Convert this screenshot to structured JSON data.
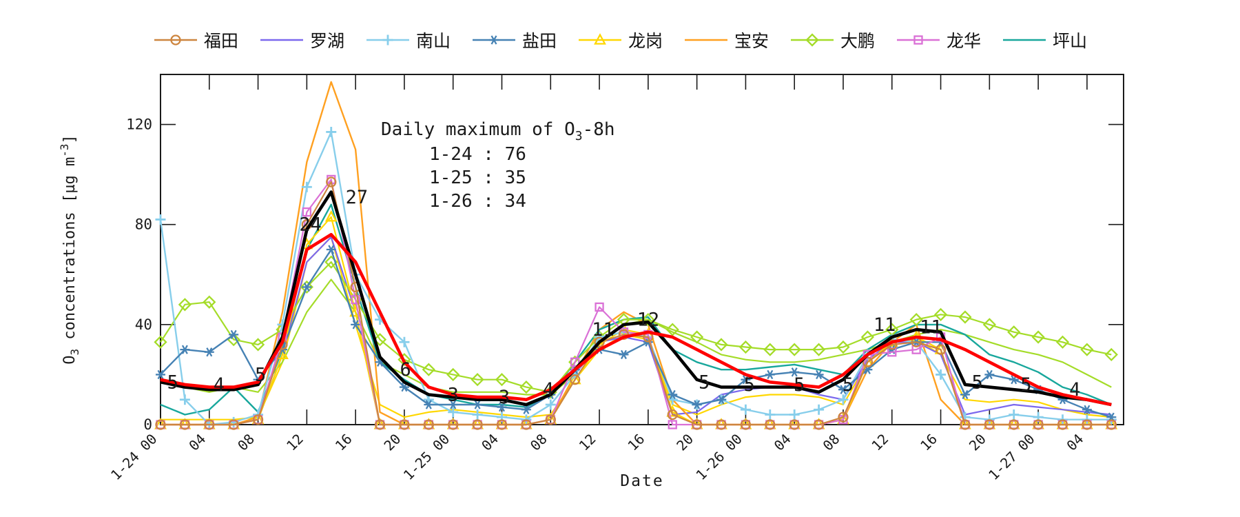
{
  "figure": {
    "background": "#ffffff",
    "spine_color": "#1a1a1a"
  },
  "xlabel": "Date",
  "ylabel": {
    "o": "O",
    "sub": "3",
    "mid": " concentrations [µg m",
    "sup": "-3",
    "close": "]"
  },
  "annotation_box": {
    "title": {
      "pre": "Daily maximum of O",
      "sub": "3",
      "post": "-8h"
    },
    "lines": {
      "0": "1-24 : 76",
      "1": "1-25 : 35",
      "2": "1-26 : 34"
    }
  },
  "chart_data": {
    "type": "line",
    "title": "",
    "xlabel": "Date",
    "ylabel": "O3 concentrations [ug m-3]",
    "xlim_hours": [
      0,
      79
    ],
    "ylim": [
      0,
      140
    ],
    "grid": false,
    "legend_position": "top-center-outside",
    "x_start_label": "1-24 00",
    "x_step_hours": 2,
    "x_tick_hours": [
      0,
      4,
      8,
      12,
      16,
      20,
      24,
      28,
      32,
      36,
      40,
      44,
      48,
      52,
      56,
      60,
      64,
      68,
      72,
      76
    ],
    "x_tick_labels": [
      "1-24 00",
      "04",
      "08",
      "12",
      "16",
      "20",
      "1-25 00",
      "04",
      "08",
      "12",
      "16",
      "20",
      "1-26 00",
      "04",
      "08",
      "12",
      "16",
      "20",
      "1-27 00",
      "04"
    ],
    "y_ticks": [
      0,
      40,
      80,
      120
    ],
    "series": [
      {
        "id": "gold-thin-unlabeled",
        "label": "",
        "legend": false,
        "color": "#FFD700",
        "marker": "none",
        "width": 2.2,
        "values": [
          2,
          2,
          2,
          2,
          3,
          25,
          65,
          75,
          40,
          8,
          3,
          5,
          6,
          5,
          4,
          3,
          4,
          18,
          30,
          36,
          34,
          8,
          4,
          8,
          11,
          12,
          12,
          11,
          8,
          25,
          33,
          34,
          28,
          10,
          9,
          10,
          9,
          6,
          4,
          3
        ]
      },
      {
        "id": "green-thin-unlabeled",
        "label": "",
        "legend": false,
        "color": "#A4DC28",
        "marker": "none",
        "width": 2.2,
        "values": [
          17,
          15,
          13,
          15,
          13,
          25,
          45,
          58,
          45,
          25,
          20,
          15,
          13,
          13,
          13,
          12,
          12,
          20,
          33,
          40,
          42,
          37,
          33,
          28,
          26,
          25,
          25,
          26,
          28,
          30,
          33,
          36,
          38,
          36,
          33,
          30,
          28,
          25,
          20,
          15
        ]
      },
      {
        "id": "luohu",
        "label": "罗湖",
        "legend": true,
        "color": "#7B68EE",
        "marker": "none",
        "width": 2.2,
        "values": [
          0,
          0,
          0,
          0,
          2,
          28,
          65,
          75,
          45,
          0,
          0,
          0,
          0,
          0,
          0,
          0,
          2,
          20,
          33,
          35,
          33,
          4,
          5,
          12,
          14,
          15,
          15,
          12,
          10,
          26,
          33,
          33,
          28,
          4,
          6,
          8,
          7,
          6,
          5,
          4
        ]
      },
      {
        "id": "baoan",
        "label": "宝安",
        "legend": true,
        "color": "#FFA020",
        "marker": "none",
        "width": 2.4,
        "values": [
          0,
          0,
          0,
          0,
          3,
          45,
          105,
          137,
          110,
          5,
          0,
          0,
          0,
          0,
          0,
          0,
          2,
          20,
          38,
          45,
          40,
          10,
          0,
          0,
          0,
          0,
          0,
          0,
          2,
          22,
          33,
          40,
          10,
          0,
          0,
          0,
          0,
          0,
          0,
          0
        ]
      },
      {
        "id": "pingshan",
        "label": "坪山",
        "legend": true,
        "color": "#18A79C",
        "marker": "none",
        "width": 2.4,
        "values": [
          8,
          4,
          6,
          15,
          5,
          30,
          70,
          88,
          55,
          25,
          18,
          12,
          10,
          8,
          8,
          7,
          12,
          25,
          38,
          42,
          43,
          30,
          25,
          22,
          22,
          23,
          24,
          22,
          20,
          30,
          36,
          40,
          40,
          36,
          28,
          25,
          21,
          15,
          12,
          8
        ]
      },
      {
        "id": "dapeng",
        "label": "大鹏",
        "legend": true,
        "color": "#A4DC28",
        "marker": "diamond",
        "width": 2.2,
        "values": [
          33,
          48,
          49,
          34,
          32,
          38,
          55,
          65,
          50,
          34,
          26,
          22,
          20,
          18,
          18,
          15,
          13,
          25,
          35,
          42,
          42,
          38,
          35,
          32,
          31,
          30,
          30,
          30,
          31,
          35,
          38,
          42,
          44,
          43,
          40,
          37,
          35,
          33,
          30,
          28
        ]
      },
      {
        "id": "longgang",
        "label": "龙岗",
        "legend": true,
        "color": "#FFD700",
        "marker": "triangle",
        "width": 2.2,
        "values": [
          0,
          0,
          0,
          0,
          2,
          28,
          72,
          83,
          45,
          0,
          0,
          0,
          0,
          0,
          0,
          0,
          2,
          18,
          32,
          38,
          36,
          5,
          0,
          0,
          0,
          0,
          0,
          0,
          2,
          25,
          33,
          35,
          30,
          0,
          0,
          0,
          0,
          0,
          0,
          0
        ]
      },
      {
        "id": "nanshan",
        "label": "南山",
        "legend": true,
        "color": "#87CEEB",
        "marker": "plus",
        "width": 2.4,
        "values": [
          82,
          10,
          0,
          1,
          4,
          40,
          95,
          117,
          60,
          42,
          33,
          10,
          5,
          4,
          3,
          2,
          8,
          20,
          35,
          37,
          35,
          10,
          8,
          10,
          6,
          4,
          4,
          6,
          10,
          28,
          34,
          33,
          20,
          3,
          2,
          4,
          3,
          2,
          2,
          2
        ]
      },
      {
        "id": "yantian",
        "label": "盐田",
        "legend": true,
        "color": "#4682B4",
        "marker": "asterisk",
        "width": 2.4,
        "values": [
          20,
          30,
          29,
          36,
          18,
          30,
          55,
          70,
          40,
          25,
          15,
          8,
          8,
          8,
          7,
          6,
          12,
          22,
          30,
          28,
          33,
          12,
          8,
          10,
          18,
          20,
          21,
          20,
          14,
          22,
          30,
          33,
          33,
          12,
          20,
          18,
          14,
          10,
          6,
          3
        ]
      },
      {
        "id": "longhua",
        "label": "龙华",
        "legend": true,
        "color": "#DA70D6",
        "marker": "square",
        "width": 2.2,
        "values": [
          0,
          0,
          0,
          0,
          2,
          35,
          85,
          98,
          50,
          0,
          0,
          0,
          0,
          0,
          0,
          0,
          2,
          25,
          47,
          37,
          36,
          0,
          0,
          0,
          0,
          0,
          0,
          0,
          2,
          28,
          29,
          30,
          35,
          0,
          0,
          0,
          0,
          0,
          0,
          0
        ]
      },
      {
        "id": "futian",
        "label": "福田",
        "legend": true,
        "color": "#CD853F",
        "marker": "circle",
        "width": 2.2,
        "values": [
          0,
          0,
          0,
          0,
          2,
          32,
          80,
          97,
          55,
          0,
          0,
          0,
          0,
          0,
          0,
          0,
          2,
          18,
          33,
          36,
          35,
          4,
          0,
          0,
          0,
          0,
          0,
          0,
          3,
          25,
          32,
          33,
          30,
          0,
          0,
          0,
          0,
          0,
          0,
          0
        ]
      },
      {
        "id": "mean-black-thick",
        "label": "",
        "legend": false,
        "color": "#000000",
        "marker": "none",
        "width": 4.6,
        "values": [
          17,
          15,
          14,
          14,
          16,
          35,
          78,
          93,
          60,
          27,
          17,
          12,
          11,
          10,
          10,
          8,
          12,
          22,
          33,
          40,
          41,
          30,
          18,
          15,
          15,
          15,
          15,
          13,
          18,
          28,
          35,
          38,
          37,
          16,
          15,
          14,
          13,
          11,
          10,
          8
        ]
      },
      {
        "id": "red-thick",
        "label": "",
        "legend": false,
        "color": "#FF0000",
        "marker": "none",
        "width": 4.6,
        "values": [
          18,
          16,
          15,
          15,
          17,
          33,
          70,
          76,
          65,
          45,
          25,
          15,
          12,
          11,
          11,
          10,
          14,
          22,
          30,
          35,
          37,
          35,
          30,
          25,
          20,
          17,
          16,
          15,
          20,
          28,
          33,
          35,
          34,
          30,
          25,
          20,
          15,
          12,
          10,
          8
        ]
      }
    ],
    "point_labels": [
      {
        "t": 1.0,
        "v": 17,
        "text": "5"
      },
      {
        "t": 4.8,
        "v": 16,
        "text": "4"
      },
      {
        "t": 8.2,
        "v": 20,
        "text": "5"
      },
      {
        "t": 12.3,
        "v": 80,
        "text": "24"
      },
      {
        "t": 16.1,
        "v": 91,
        "text": "27"
      },
      {
        "t": 20.1,
        "v": 22,
        "text": "6"
      },
      {
        "t": 24.0,
        "v": 12,
        "text": "3"
      },
      {
        "t": 28.2,
        "v": 11,
        "text": "3"
      },
      {
        "t": 31.8,
        "v": 14,
        "text": "4"
      },
      {
        "t": 36.3,
        "v": 38,
        "text": "11"
      },
      {
        "t": 40.0,
        "v": 42,
        "text": "12"
      },
      {
        "t": 44.6,
        "v": 17,
        "text": "5"
      },
      {
        "t": 48.3,
        "v": 16,
        "text": "5"
      },
      {
        "t": 52.4,
        "v": 16,
        "text": "5"
      },
      {
        "t": 56.4,
        "v": 16,
        "text": "5"
      },
      {
        "t": 59.4,
        "v": 40,
        "text": "11"
      },
      {
        "t": 63.2,
        "v": 39,
        "text": "11"
      },
      {
        "t": 67.0,
        "v": 17,
        "text": "5"
      },
      {
        "t": 71.0,
        "v": 16,
        "text": "5"
      },
      {
        "t": 75.0,
        "v": 14,
        "text": "4"
      }
    ],
    "annotation_box": {
      "title": "Daily maximum of O3-8h",
      "lines": [
        "1-24 : 76",
        "1-25 : 35",
        "1-26 : 34"
      ]
    }
  }
}
